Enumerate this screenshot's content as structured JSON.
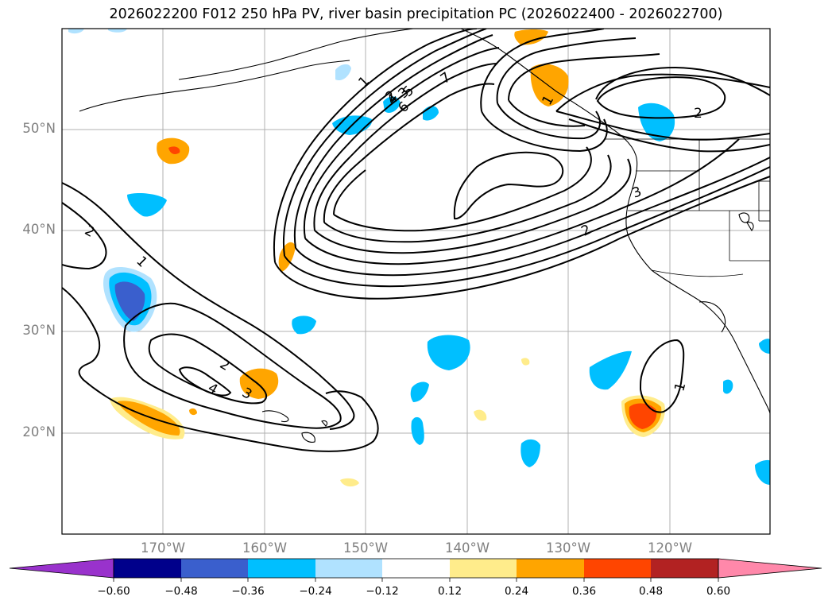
{
  "title": "2026022200 F012 250 hPa PV, river basin precipitation PC (2026022400 - 2026022700)",
  "map": {
    "lat_labels": [
      "50°N",
      "40°N",
      "30°N",
      "20°N"
    ],
    "lon_labels": [
      "170°W",
      "160°W",
      "150°W",
      "140°W",
      "130°W",
      "120°W"
    ],
    "contour_labels": [
      "1",
      "2",
      "3",
      "4",
      "5",
      "6",
      "7",
      "1",
      "2",
      "2",
      "3",
      "2",
      "1",
      "2",
      "3",
      "4",
      "1"
    ]
  },
  "colorbar": {
    "ticks": [
      "−0.60",
      "−0.48",
      "−0.36",
      "−0.24",
      "−0.12",
      "0.12",
      "0.24",
      "0.36",
      "0.48",
      "0.60"
    ],
    "colors": [
      "#9932cc",
      "#00008b",
      "#3a5fcd",
      "#00bfff",
      "#b0e2ff",
      "#ffffff",
      "#ffec8b",
      "#ffa500",
      "#ff4500",
      "#b22222",
      "#ff88aa"
    ]
  }
}
